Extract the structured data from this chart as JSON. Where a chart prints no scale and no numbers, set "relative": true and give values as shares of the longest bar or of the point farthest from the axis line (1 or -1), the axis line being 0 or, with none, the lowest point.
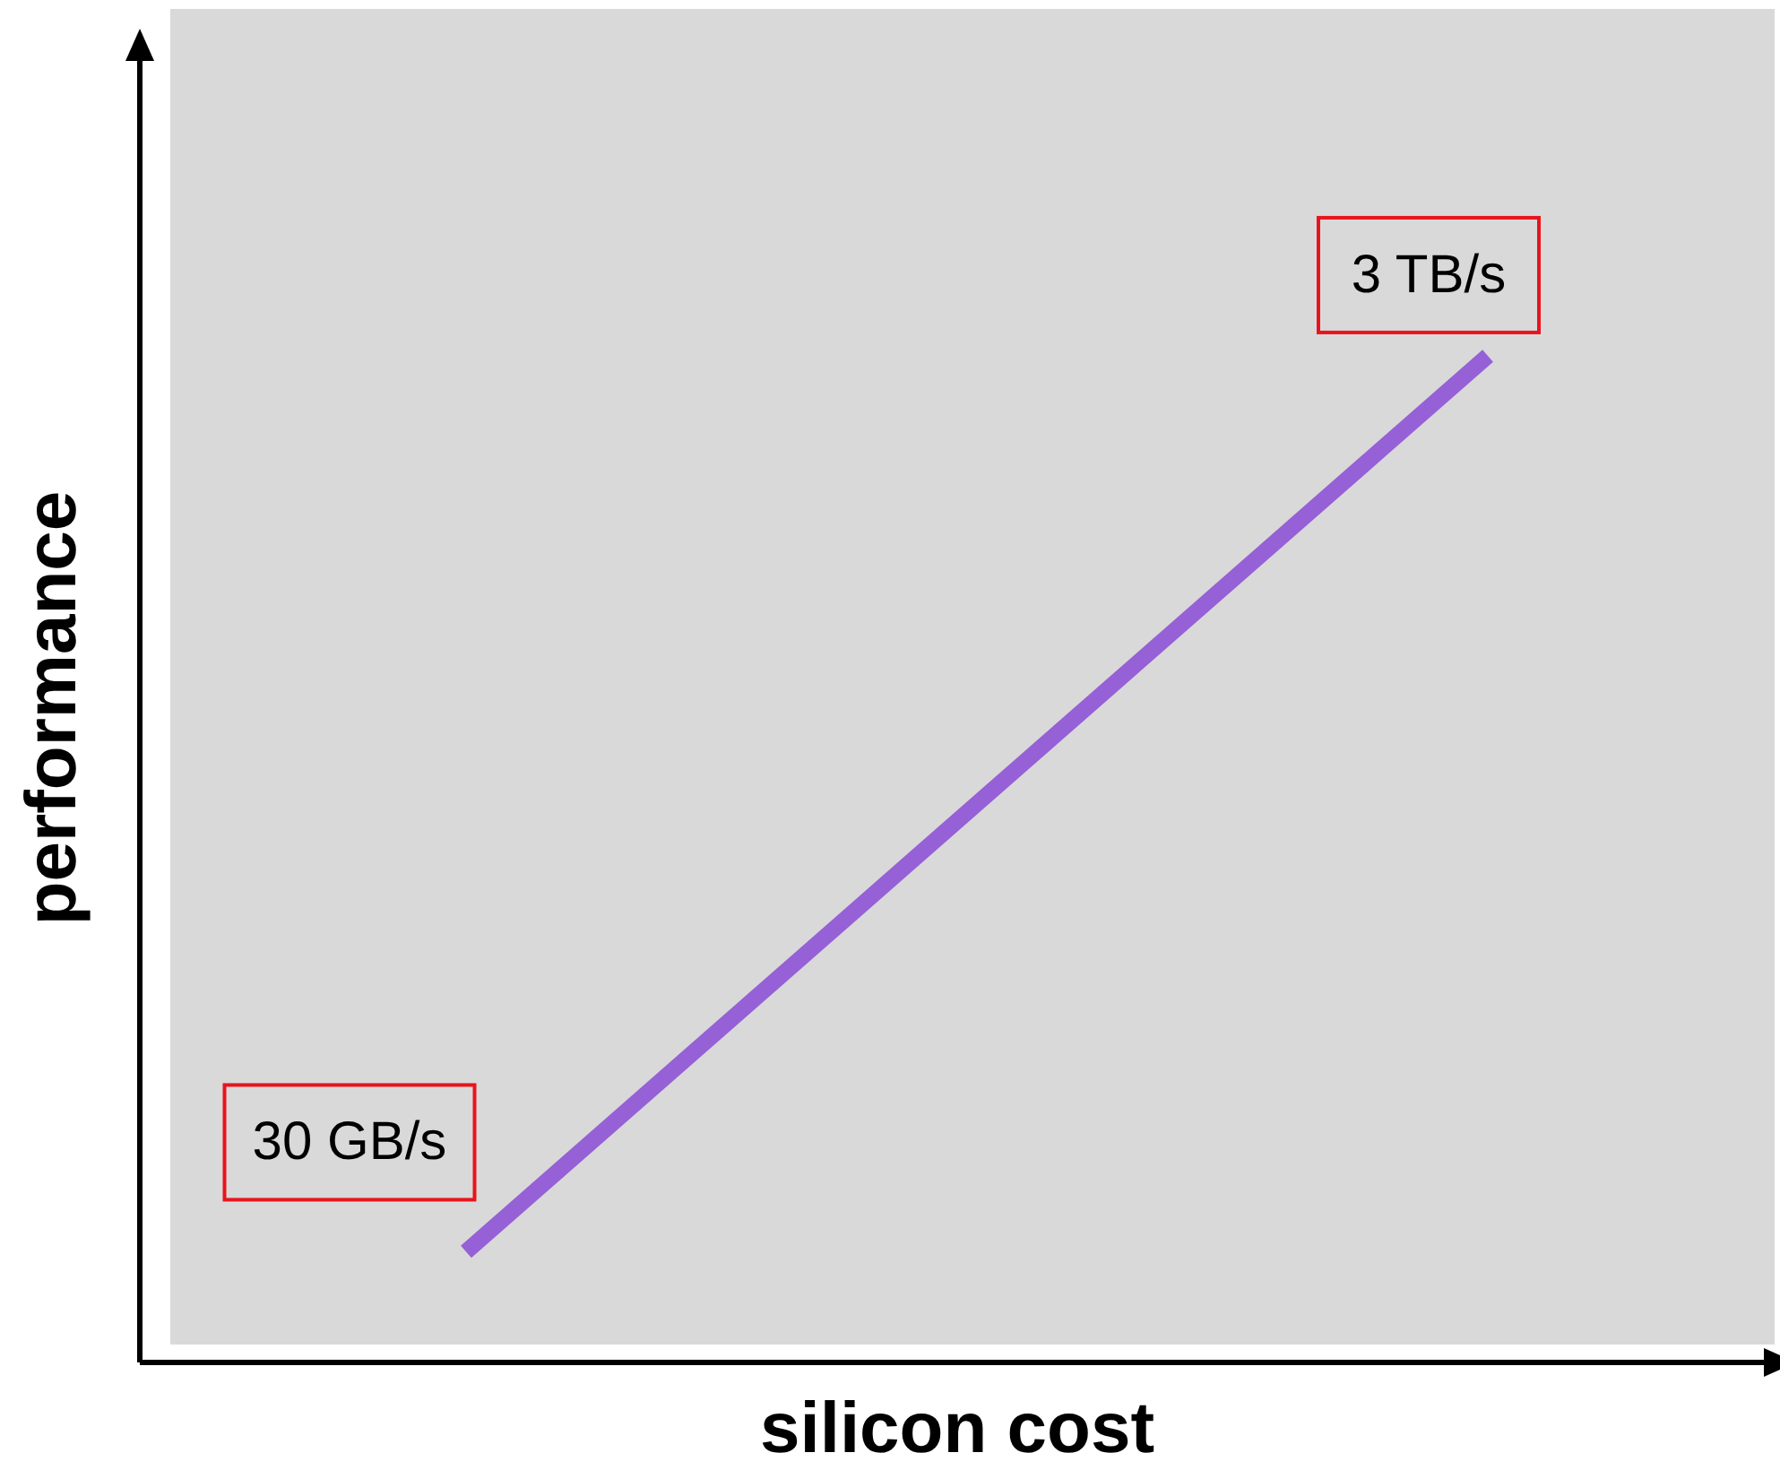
{
  "chart_data": {
    "type": "line",
    "xlabel": "silicon cost",
    "ylabel": "performance",
    "categories": [
      null,
      null
    ],
    "relative": true,
    "series": [
      {
        "color": "#9660d6",
        "values": [
          0.11,
          1
        ]
      }
    ],
    "annotations": [
      "30 GB/s",
      "3 TB/s"
    ],
    "grid": false,
    "legend": false,
    "marker": "none",
    "line_style": "solid"
  }
}
